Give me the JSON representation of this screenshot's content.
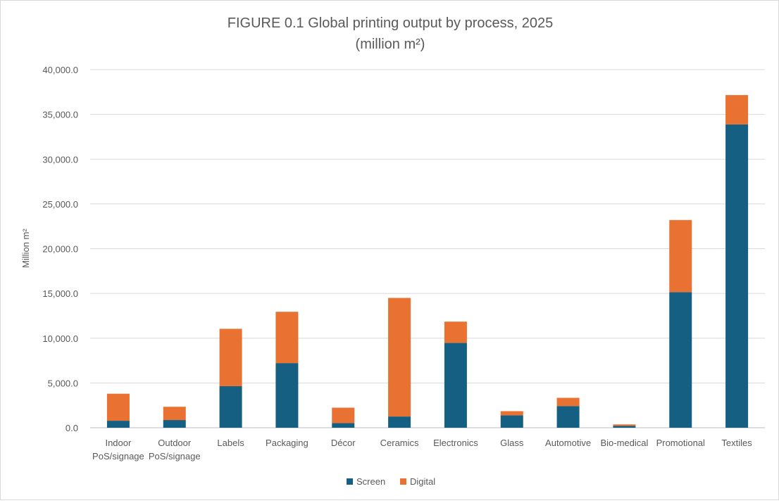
{
  "chart_data": {
    "type": "bar",
    "stacked": true,
    "title": "FIGURE 0.1 Global printing output by process, 2025",
    "subtitle": "(million m²)",
    "xlabel": "",
    "ylabel": "Million m²",
    "ylim": [
      0,
      40000
    ],
    "yticks": [
      0,
      5000,
      10000,
      15000,
      20000,
      25000,
      30000,
      35000,
      40000
    ],
    "ytick_labels": [
      "0.0",
      "5,000.0",
      "10,000.0",
      "15,000.0",
      "20,000.0",
      "25,000.0",
      "30,000.0",
      "35,000.0",
      "40,000.0"
    ],
    "grid": true,
    "legend_position": "bottom",
    "categories": [
      [
        "Indoor",
        "PoS/signage"
      ],
      [
        "Outdoor",
        "PoS/signage"
      ],
      [
        "Labels"
      ],
      [
        "Packaging"
      ],
      [
        "Décor"
      ],
      [
        "Ceramics"
      ],
      [
        "Electronics"
      ],
      [
        "Glass"
      ],
      [
        "Automotive"
      ],
      [
        "Bio-medical"
      ],
      [
        "Promotional"
      ],
      [
        "Textiles"
      ]
    ],
    "series": [
      {
        "name": "Screen",
        "color": "#156082",
        "values": [
          780,
          860,
          4640,
          7220,
          520,
          1250,
          9480,
          1380,
          2420,
          200,
          15150,
          33880
        ]
      },
      {
        "name": "Digital",
        "color": "#e97132",
        "values": [
          3020,
          1480,
          6410,
          5730,
          1720,
          13250,
          2370,
          470,
          920,
          170,
          8050,
          3280
        ]
      }
    ]
  }
}
